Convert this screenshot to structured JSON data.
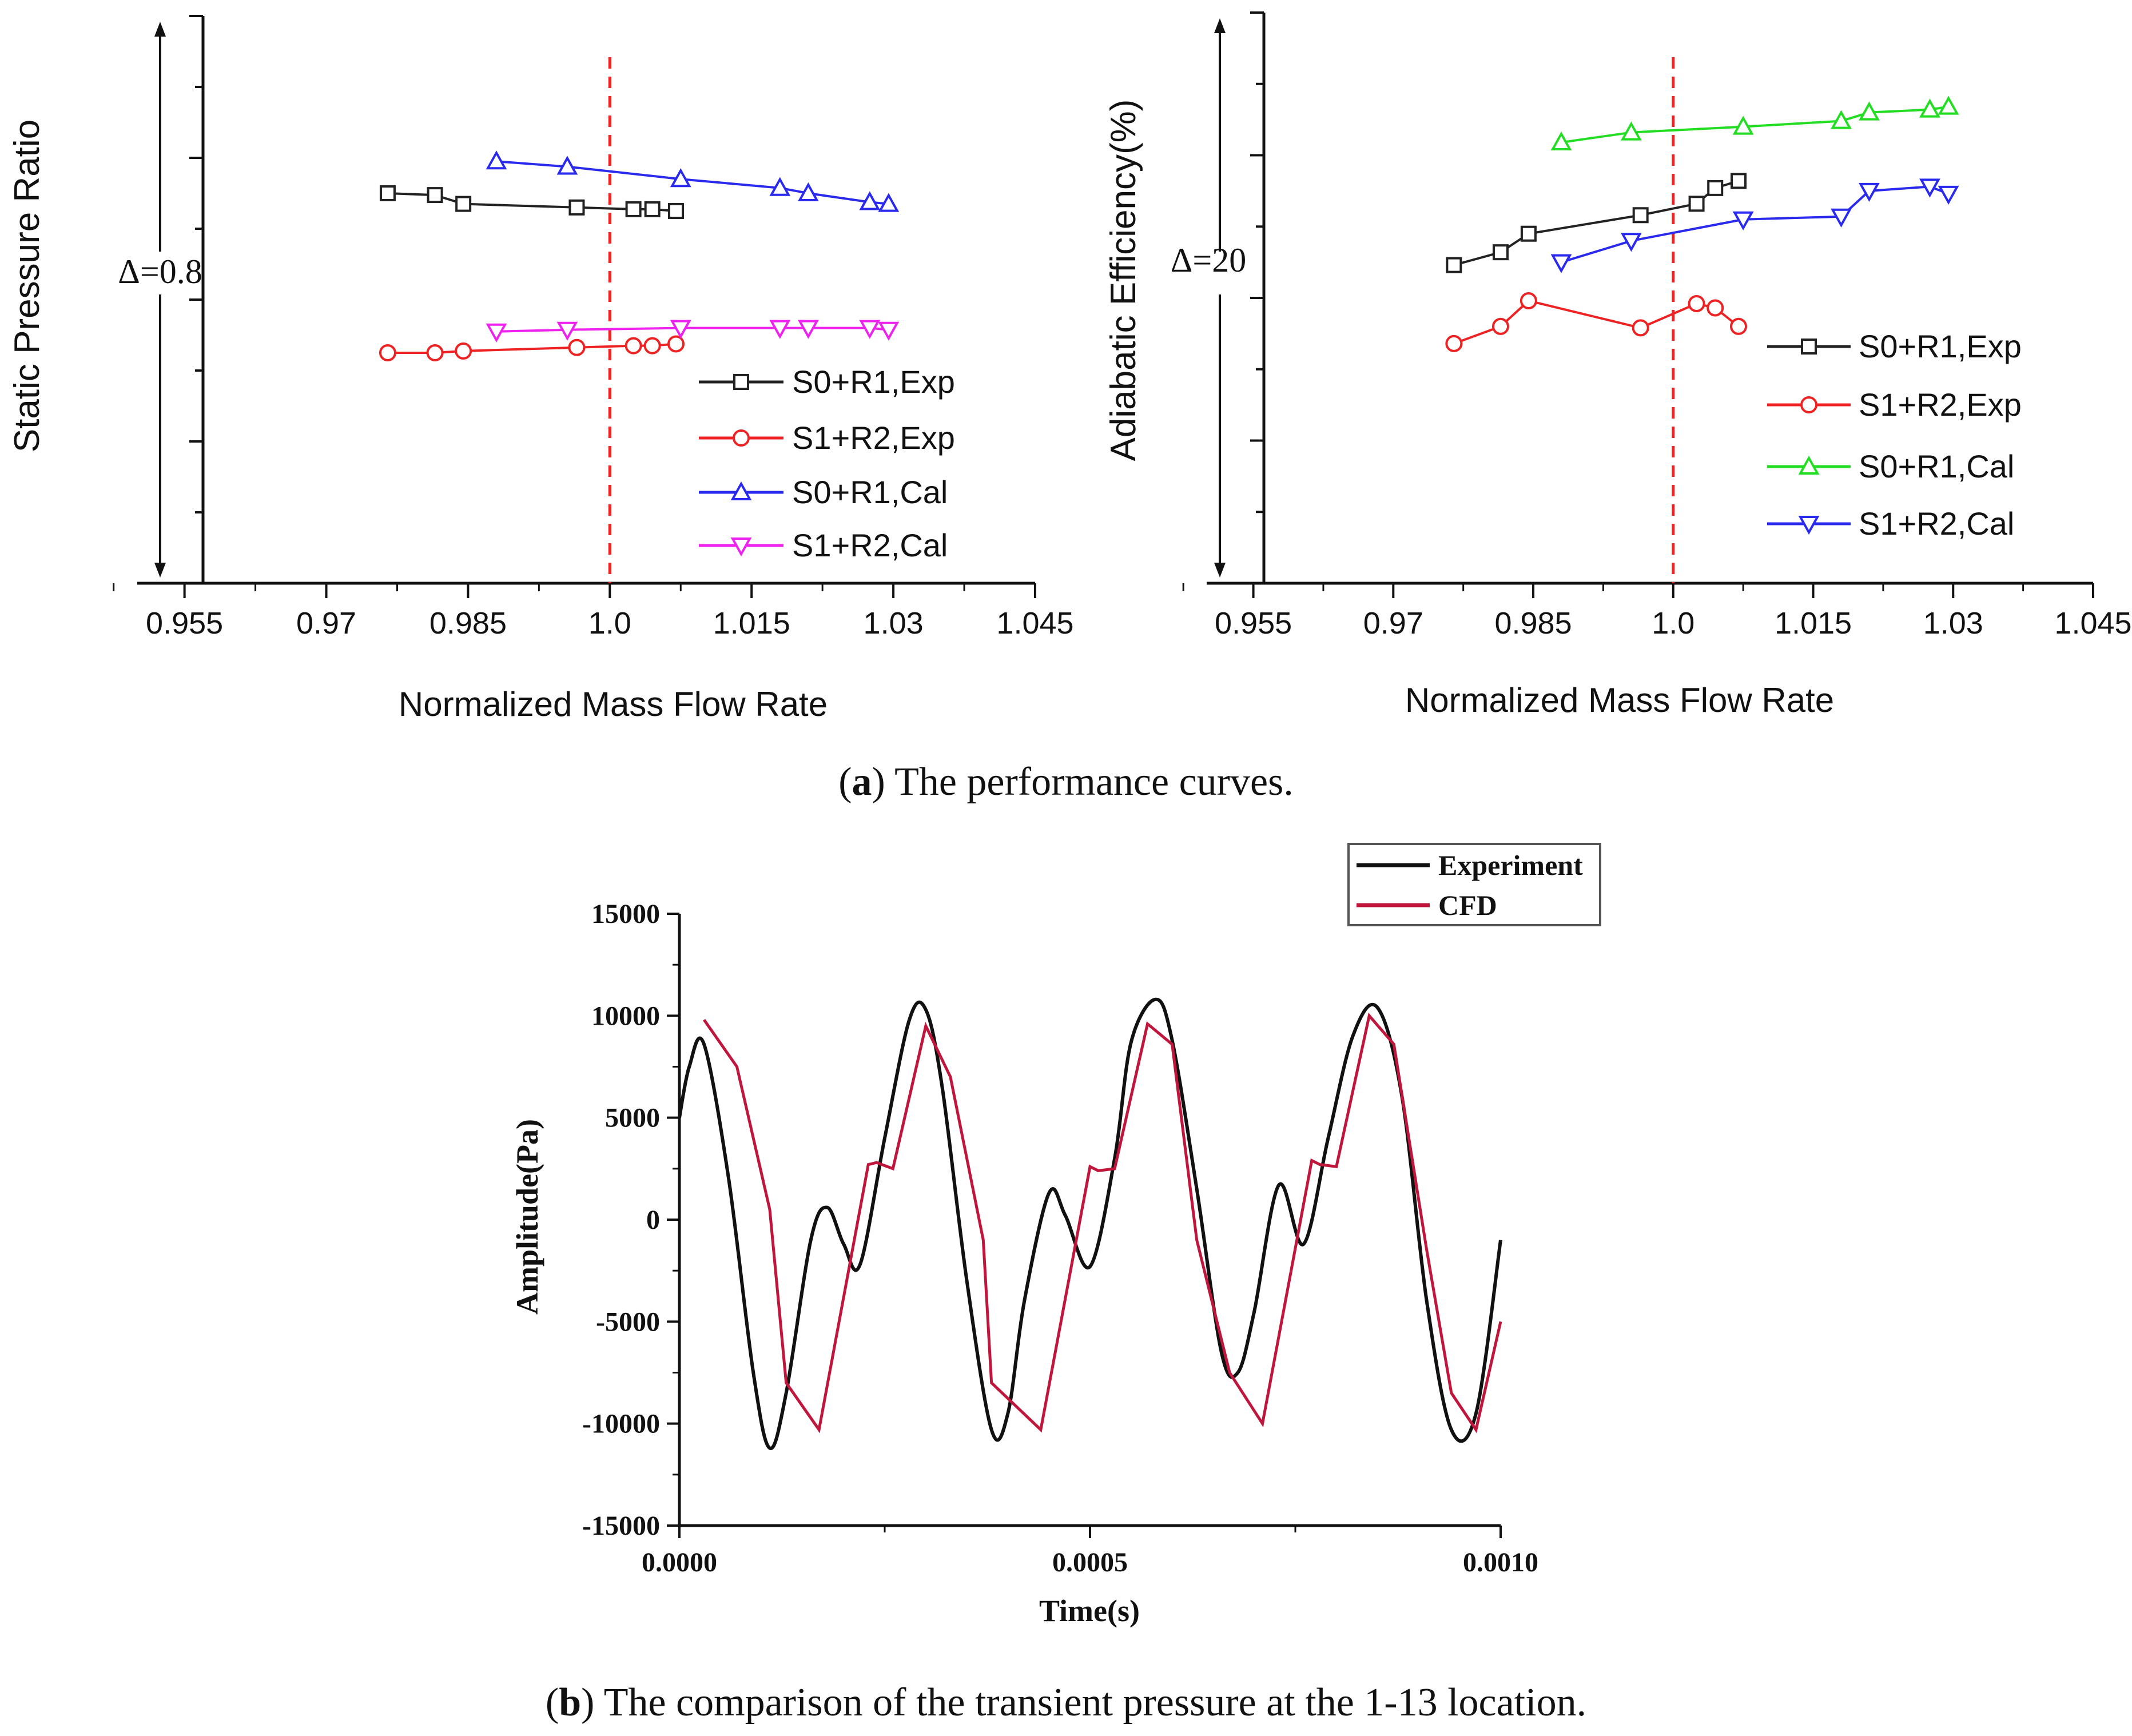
{
  "captions": {
    "a_letter": "a",
    "a_text": " The performance curves.",
    "b_letter": "b",
    "b_text": " The comparison of the transient pressure at the 1-13 location."
  },
  "colors": {
    "black": "#222222",
    "red": "#ee2222",
    "blue": "#2a2aee",
    "magenta": "#ee22ee",
    "green": "#22dd22",
    "exp_line": "#111111",
    "cfd_line": "#c0163c"
  },
  "chart_data": [
    {
      "id": "pressure_ratio",
      "type": "line",
      "title": "",
      "xlabel": "Normalized Mass Flow Rate",
      "ylabel": "Static Pressure Ratio",
      "xlim": [
        0.95,
        1.045
      ],
      "ylim": [
        0,
        1.6
      ],
      "xticks": [
        0.955,
        0.97,
        0.985,
        1.0,
        1.015,
        1.03,
        1.045
      ],
      "xtick_labels": [
        "0.955",
        "0.97",
        "0.985",
        "1.0",
        "1.015",
        "1.03",
        "1.045"
      ],
      "ref_line_x": 1.0,
      "delta_label": "Δ=0.8",
      "legend_position": "bottom-right",
      "series": [
        {
          "name": "S0+R1,Exp",
          "color": "#222222",
          "marker": "square",
          "x": [
            0.9765,
            0.9815,
            0.9845,
            0.9965,
            1.0025,
            1.0045,
            1.007
          ],
          "y": [
            1.1,
            1.095,
            1.07,
            1.06,
            1.055,
            1.055,
            1.05
          ]
        },
        {
          "name": "S1+R2,Exp",
          "color": "#ee2222",
          "marker": "circle",
          "x": [
            0.9765,
            0.9815,
            0.9845,
            0.9965,
            1.0025,
            1.0045,
            1.007
          ],
          "y": [
            0.65,
            0.65,
            0.655,
            0.665,
            0.67,
            0.67,
            0.675
          ]
        },
        {
          "name": "S0+R1,Cal",
          "color": "#2a2aee",
          "marker": "triangle-up",
          "x": [
            0.988,
            0.9955,
            1.0075,
            1.018,
            1.021,
            1.0275,
            1.0295
          ],
          "y": [
            1.19,
            1.175,
            1.14,
            1.115,
            1.1,
            1.075,
            1.07
          ]
        },
        {
          "name": "S1+R2,Cal",
          "color": "#ee22ee",
          "marker": "triangle-down",
          "x": [
            0.988,
            0.9955,
            1.0075,
            1.018,
            1.021,
            1.0275,
            1.0295
          ],
          "y": [
            0.71,
            0.715,
            0.72,
            0.72,
            0.72,
            0.72,
            0.715
          ]
        }
      ]
    },
    {
      "id": "efficiency",
      "type": "line",
      "title": "",
      "xlabel": "Normalized Mass Flow Rate",
      "ylabel": "Adiabatic Efficiency(%)",
      "xlim": [
        0.95,
        1.045
      ],
      "ylim": [
        0,
        40
      ],
      "xticks": [
        0.955,
        0.97,
        0.985,
        1.0,
        1.015,
        1.03,
        1.045
      ],
      "xtick_labels": [
        "0.955",
        "0.97",
        "0.985",
        "1.0",
        "1.015",
        "1.03",
        "1.045"
      ],
      "ref_line_x": 1.0,
      "delta_label": "Δ=20",
      "legend_position": "bottom-right",
      "series": [
        {
          "name": "S0+R1,Exp",
          "color": "#222222",
          "marker": "square",
          "x": [
            0.9765,
            0.9815,
            0.9845,
            0.9965,
            1.0025,
            1.0045,
            1.007
          ],
          "y": [
            22.3,
            23.2,
            24.5,
            25.8,
            26.6,
            27.7,
            28.2
          ]
        },
        {
          "name": "S1+R2,Exp",
          "color": "#ee2222",
          "marker": "circle",
          "x": [
            0.9765,
            0.9815,
            0.9845,
            0.9965,
            1.0025,
            1.0045,
            1.007
          ],
          "y": [
            16.8,
            18.0,
            19.8,
            17.9,
            19.6,
            19.3,
            18.0
          ]
        },
        {
          "name": "S0+R1,Cal",
          "color": "#22dd22",
          "marker": "triangle-up",
          "x": [
            0.988,
            0.9955,
            1.0075,
            1.018,
            1.021,
            1.0275,
            1.0295
          ],
          "y": [
            30.9,
            31.6,
            32.0,
            32.4,
            33.0,
            33.2,
            33.4
          ]
        },
        {
          "name": "S1+R2,Cal",
          "color": "#2a2aee",
          "marker": "triangle-down",
          "x": [
            0.988,
            0.9955,
            1.0075,
            1.018,
            1.021,
            1.0275,
            1.0295
          ],
          "y": [
            22.5,
            24.0,
            25.5,
            25.7,
            27.5,
            27.8,
            27.3
          ]
        }
      ]
    },
    {
      "id": "transient_pressure",
      "type": "line",
      "title": "",
      "xlabel": "Time(s)",
      "ylabel": "Amplitude(Pa)",
      "xlim": [
        0,
        0.001
      ],
      "ylim": [
        -15000,
        15000
      ],
      "xticks": [
        0,
        0.0005,
        0.001
      ],
      "xtick_labels": [
        "0.0000",
        "0.0005",
        "0.0010"
      ],
      "yticks": [
        -15000,
        -10000,
        -5000,
        0,
        5000,
        10000,
        15000
      ],
      "ytick_labels": [
        "-15000",
        "-10000",
        "-5000",
        "0",
        "5000",
        "10000",
        "15000"
      ],
      "legend_position": "top-right",
      "series": [
        {
          "name": "Experiment",
          "color": "#111111",
          "smooth": true,
          "x": [
            0,
            1.2e-05,
            3e-05,
            6e-05,
            9e-05,
            0.00011,
            0.00013,
            0.00016,
            0.00018,
            0.0002,
            0.00022,
            0.00025,
            0.00028,
            0.0003,
            0.00032,
            0.00035,
            0.00038,
            0.0004,
            0.00042,
            0.00045,
            0.00047,
            0.0005,
            0.00053,
            0.00055,
            0.00058,
            0.0006,
            0.00063,
            0.00066,
            0.00068,
            0.0007,
            0.00073,
            0.00076,
            0.00079,
            0.00082,
            0.00085,
            0.00088,
            0.00091,
            0.00094,
            0.00097,
            0.001
          ],
          "y": [
            5000,
            7500,
            8600,
            2000,
            -7500,
            -11200,
            -8500,
            -1000,
            600,
            -1200,
            -2200,
            4000,
            9800,
            10300,
            6500,
            -3000,
            -10300,
            -9500,
            -4000,
            1300,
            200,
            -2300,
            3000,
            8700,
            10800,
            8800,
            1500,
            -6500,
            -7500,
            -4500,
            1700,
            -1200,
            4000,
            9000,
            10400,
            6000,
            -4000,
            -10300,
            -9500,
            -1000
          ]
        },
        {
          "name": "CFD",
          "color": "#c0163c",
          "smooth": false,
          "x": [
            3e-05,
            7e-05,
            0.00011,
            0.00013,
            0.00017,
            0.00023,
            0.00024,
            0.00026,
            0.0003,
            0.00033,
            0.00037,
            0.00038,
            0.00044,
            0.0005,
            0.00051,
            0.00053,
            0.00057,
            0.0006,
            0.00063,
            0.00067,
            0.00071,
            0.00077,
            0.00078,
            0.0008,
            0.00084,
            0.00087,
            0.00091,
            0.00094,
            0.00097,
            0.001
          ],
          "y": [
            9800,
            7500,
            500,
            -8000,
            -10300,
            2700,
            2800,
            2500,
            9500,
            7000,
            -1000,
            -8000,
            -10300,
            2600,
            2400,
            2500,
            9600,
            8600,
            -1000,
            -7500,
            -10000,
            2900,
            2700,
            2600,
            10000,
            8600,
            -1500,
            -8500,
            -10300,
            -5000
          ]
        }
      ]
    }
  ]
}
